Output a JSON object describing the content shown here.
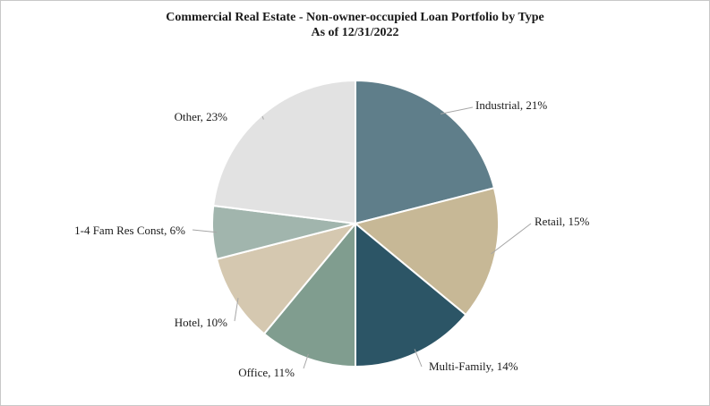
{
  "chart_data": {
    "type": "pie",
    "title": "Commercial Real Estate - Non-owner-occupied Loan Portfolio by Type",
    "subtitle": "As of 12/31/2022",
    "slices": [
      {
        "name": "Industrial",
        "value": 21,
        "label": "Industrial, 21%",
        "color": "#5f7e8a"
      },
      {
        "name": "Retail",
        "value": 15,
        "label": "Retail, 15%",
        "color": "#c7b896"
      },
      {
        "name": "Multi-Family",
        "value": 14,
        "label": "Multi-Family, 14%",
        "color": "#2c5566"
      },
      {
        "name": "Office",
        "value": 11,
        "label": "Office, 11%",
        "color": "#809d8f"
      },
      {
        "name": "Hotel",
        "value": 10,
        "label": "Hotel, 10%",
        "color": "#d5c8b0"
      },
      {
        "name": "1-4 Fam Res Const",
        "value": 6,
        "label": "1-4 Fam Res Const, 6%",
        "color": "#a1b5ad"
      },
      {
        "name": "Other",
        "value": 23,
        "label": "Other, 23%",
        "color": "#e2e2e2"
      }
    ]
  }
}
